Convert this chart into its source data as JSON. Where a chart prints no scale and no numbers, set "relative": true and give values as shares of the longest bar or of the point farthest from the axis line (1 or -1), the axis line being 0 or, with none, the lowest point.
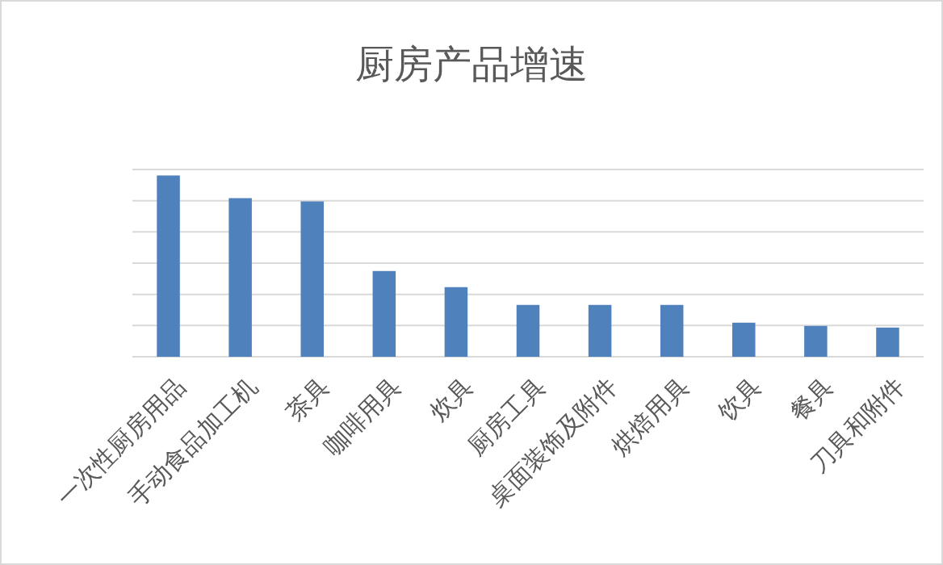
{
  "chart_data": {
    "type": "bar",
    "title": "厨房产品增速",
    "relative": true,
    "grid": "y",
    "color": "#4f81bd",
    "categories": [
      "一次性厨房用品",
      "手动食品加工机",
      "茶具",
      "咖啡用具",
      "炊具",
      "厨房工具",
      "桌面装饰及附件",
      "烘焙用具",
      "饮具",
      "餐具",
      "刀具和附件"
    ],
    "values": [
      1,
      0.875,
      0.857,
      0.473,
      0.384,
      0.286,
      0.286,
      0.286,
      0.188,
      0.17,
      0.161
    ]
  }
}
